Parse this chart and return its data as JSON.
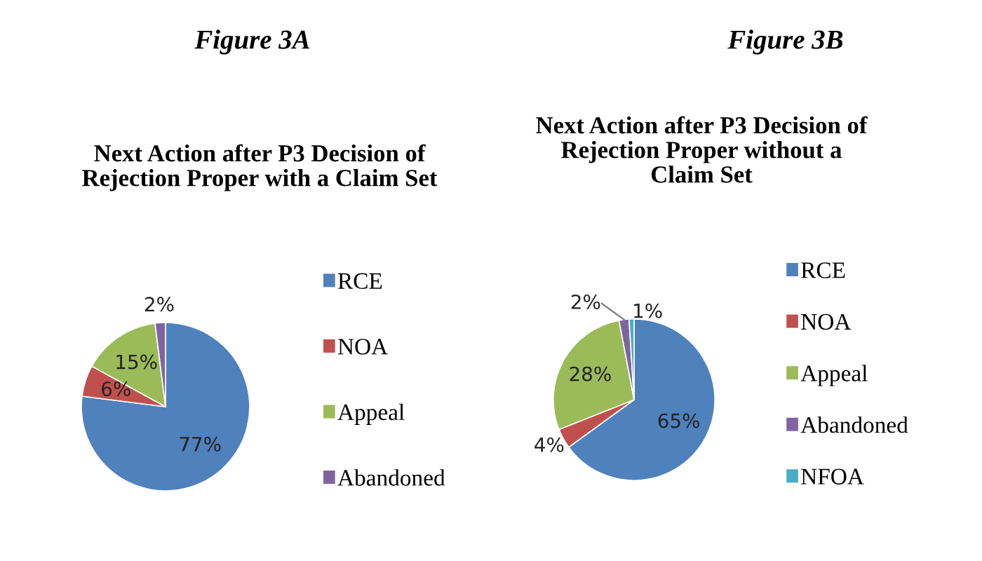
{
  "chart_data": [
    {
      "type": "pie",
      "title": "Next Action after P3 Decision of\nRejection Proper with a Claim Set",
      "annotations": [
        "Figure 3A"
      ],
      "categories": [
        "RCE",
        "NOA",
        "Appeal",
        "Abandoned"
      ],
      "values": [
        77,
        6,
        15,
        2
      ],
      "value_labels": [
        "77%",
        "6%",
        "15%",
        "2%"
      ],
      "colors": [
        "#4f81bd",
        "#c0504d",
        "#9bbb59",
        "#8064a2"
      ],
      "legend": "right"
    },
    {
      "type": "pie",
      "title": "Next Action after P3 Decision of\nRejection Proper without a\nClaim Set",
      "annotations": [
        "Figure 3B"
      ],
      "categories": [
        "RCE",
        "NOA",
        "Appeal",
        "Abandoned",
        "NFOA"
      ],
      "values": [
        65,
        4,
        28,
        2,
        1
      ],
      "value_labels": [
        "65%",
        "4%",
        "28%",
        "2%",
        "1%"
      ],
      "colors": [
        "#4f81bd",
        "#c0504d",
        "#9bbb59",
        "#8064a2",
        "#4bacc6"
      ],
      "legend": "right"
    }
  ]
}
